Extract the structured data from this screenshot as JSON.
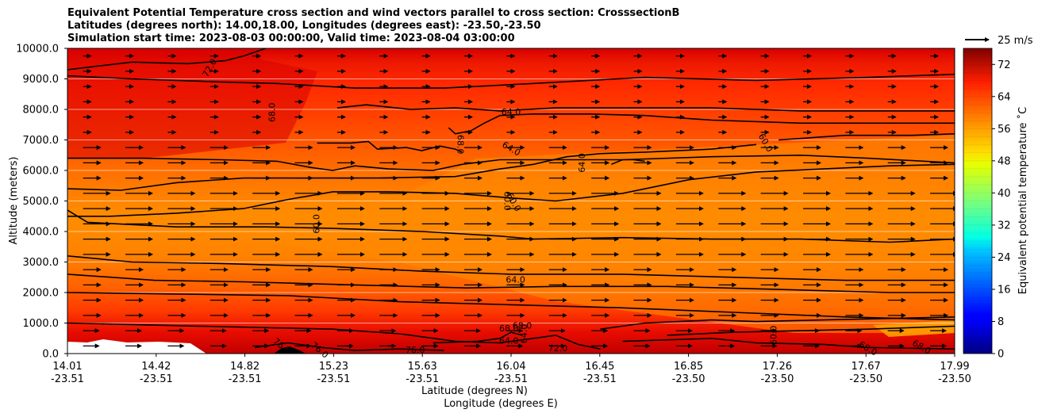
{
  "chart_data": {
    "type": "contourf",
    "title_lines": [
      "Equivalent Potential Temperature cross section and wind vectors parallel to cross section: CrosssectionB",
      "Latitudes (degrees north): 14.00,18.00, Longitudes (degrees east): -23.50,-23.50",
      "Simulation start time: 2023-08-03 00:00:00, Valid time: 2023-08-04 03:00:00"
    ],
    "xlabel_lines": [
      "Latitude (degrees N)",
      "Longitude (degrees E)"
    ],
    "ylabel": "Altitude (meters)",
    "x_ticks": [
      {
        "lat": "14.01",
        "lon": "-23.51"
      },
      {
        "lat": "14.42",
        "lon": "-23.51"
      },
      {
        "lat": "14.82",
        "lon": "-23.51"
      },
      {
        "lat": "15.23",
        "lon": "-23.51"
      },
      {
        "lat": "15.63",
        "lon": "-23.51"
      },
      {
        "lat": "16.04",
        "lon": "-23.51"
      },
      {
        "lat": "16.45",
        "lon": "-23.51"
      },
      {
        "lat": "16.85",
        "lon": "-23.50"
      },
      {
        "lat": "17.26",
        "lon": "-23.50"
      },
      {
        "lat": "17.67",
        "lon": "-23.50"
      },
      {
        "lat": "17.99",
        "lon": "-23.50"
      }
    ],
    "y_ticks": [
      "0.0",
      "1000.0",
      "2000.0",
      "3000.0",
      "4000.0",
      "5000.0",
      "6000.0",
      "7000.0",
      "8000.0",
      "9000.0",
      "10000.0"
    ],
    "ylim": [
      0,
      10000
    ],
    "colorbar": {
      "label": "Equivalent potential temperature ˚C",
      "range": [
        0,
        76
      ],
      "step": 2,
      "ticks": [
        "0",
        "8",
        "16",
        "24",
        "32",
        "40",
        "48",
        "56",
        "64",
        "72"
      ],
      "colormap": "jet"
    },
    "quiver_key": "25 m/s",
    "contour_labels": [
      {
        "text": "72.0",
        "x": 14.65,
        "y": 9350,
        "rot": -60
      },
      {
        "text": "68.0",
        "x": 14.93,
        "y": 7900,
        "rot": -90
      },
      {
        "text": "68.0",
        "x": 15.77,
        "y": 6850,
        "rot": 90
      },
      {
        "text": "64.0",
        "x": 16.0,
        "y": 7900,
        "rot": 0
      },
      {
        "text": "64.0",
        "x": 16.0,
        "y": 6700,
        "rot": 30
      },
      {
        "text": "64.0",
        "x": 16.32,
        "y": 6250,
        "rot": -90
      },
      {
        "text": "60.0",
        "x": 17.14,
        "y": 6900,
        "rot": 60
      },
      {
        "text": "60.0",
        "x": 15.98,
        "y": 5000,
        "rot": 90
      },
      {
        "text": "60.0",
        "x": 16.01,
        "y": 4950,
        "rot": 60
      },
      {
        "text": "60.0",
        "x": 15.13,
        "y": 4250,
        "rot": -90
      },
      {
        "text": "64.0",
        "x": 16.02,
        "y": 2400,
        "rot": 0
      },
      {
        "text": "68.0",
        "x": 15.99,
        "y": 800,
        "rot": 0
      },
      {
        "text": "68.0",
        "x": 16.05,
        "y": 900,
        "rot": 0
      },
      {
        "text": "64.0",
        "x": 15.99,
        "y": 400,
        "rot": 0
      },
      {
        "text": "64.0",
        "x": 16.06,
        "y": 650,
        "rot": -90
      },
      {
        "text": "76.0",
        "x": 15.57,
        "y": 100,
        "rot": 0
      },
      {
        "text": "72.0",
        "x": 16.21,
        "y": 150,
        "rot": 0
      },
      {
        "text": "76.0",
        "x": 14.97,
        "y": 230,
        "rot": 40
      },
      {
        "text": "76.0",
        "x": 15.14,
        "y": 100,
        "rot": 40
      },
      {
        "text": "60.0",
        "x": 17.18,
        "y": 600,
        "rot": -90
      },
      {
        "text": "68.0",
        "x": 17.6,
        "y": 150,
        "rot": 30
      },
      {
        "text": "68.0",
        "x": 17.84,
        "y": 200,
        "rot": 30
      }
    ],
    "contours": [
      {
        "level": 72,
        "points": [
          [
            14.01,
            9300
          ],
          [
            14.3,
            9550
          ],
          [
            14.55,
            9500
          ],
          [
            14.72,
            9600
          ],
          [
            14.8,
            9750
          ],
          [
            14.9,
            10000
          ]
        ]
      },
      {
        "level": 68,
        "points": [
          [
            14.01,
            9100
          ],
          [
            14.3,
            9000
          ],
          [
            14.7,
            8900
          ],
          [
            14.95,
            8850
          ],
          [
            15.3,
            8700
          ],
          [
            15.7,
            8700
          ],
          [
            16.1,
            8850
          ],
          [
            16.6,
            9050
          ],
          [
            17.1,
            8950
          ],
          [
            17.6,
            9050
          ],
          [
            17.99,
            9150
          ]
        ]
      },
      {
        "level": 68,
        "points": [
          [
            14.01,
            6400
          ],
          [
            14.35,
            6400
          ],
          [
            14.7,
            6350
          ],
          [
            14.95,
            6300
          ],
          [
            15.1,
            6100
          ],
          [
            15.2,
            6000
          ],
          [
            15.3,
            6150
          ],
          [
            15.45,
            6050
          ],
          [
            15.65,
            6000
          ],
          [
            15.78,
            6200
          ],
          [
            15.95,
            6350
          ],
          [
            16.2,
            6350
          ],
          [
            16.5,
            6350
          ],
          [
            16.9,
            6450
          ],
          [
            17.3,
            6500
          ],
          [
            17.6,
            6400
          ],
          [
            17.99,
            6250
          ]
        ]
      },
      {
        "level": 68,
        "points": [
          [
            15.13,
            6900
          ],
          [
            15.28,
            6900
          ],
          [
            15.36,
            6950
          ],
          [
            15.4,
            6700
          ],
          [
            15.53,
            6750
          ],
          [
            15.6,
            6650
          ],
          [
            15.68,
            6800
          ],
          [
            15.75,
            6700
          ],
          [
            15.78,
            6600
          ]
        ]
      },
      {
        "level": 68,
        "points": [
          [
            15.22,
            8050
          ],
          [
            15.35,
            8150
          ],
          [
            15.55,
            8000
          ],
          [
            15.75,
            8050
          ],
          [
            15.95,
            7950
          ],
          [
            16.2,
            8050
          ],
          [
            16.5,
            8050
          ],
          [
            16.9,
            8050
          ],
          [
            17.3,
            7950
          ],
          [
            17.99,
            7950
          ]
        ]
      },
      {
        "level": 64,
        "points": [
          [
            15.72,
            7400
          ],
          [
            15.75,
            7200
          ],
          [
            15.82,
            7300
          ],
          [
            15.88,
            7550
          ],
          [
            15.95,
            7800
          ],
          [
            16.1,
            7850
          ],
          [
            16.35,
            7850
          ],
          [
            16.6,
            7800
          ],
          [
            16.9,
            7650
          ],
          [
            17.3,
            7550
          ],
          [
            17.99,
            7550
          ]
        ]
      },
      {
        "level": 64,
        "points": [
          [
            14.01,
            5400
          ],
          [
            14.25,
            5350
          ],
          [
            14.5,
            5600
          ],
          [
            14.8,
            5750
          ],
          [
            15.1,
            5750
          ],
          [
            15.4,
            5750
          ],
          [
            15.75,
            5800
          ],
          [
            15.95,
            6050
          ],
          [
            16.1,
            6200
          ],
          [
            16.25,
            6450
          ],
          [
            16.4,
            6550
          ],
          [
            16.6,
            6600
          ],
          [
            16.9,
            6700
          ],
          [
            17.1,
            6850
          ]
        ]
      },
      {
        "level": 64,
        "points": [
          [
            16.45,
            6200
          ],
          [
            16.5,
            6350
          ],
          [
            16.55,
            6350
          ],
          [
            16.6,
            6300
          ]
        ]
      },
      {
        "level": 64,
        "points": [
          [
            17.2,
            7000
          ],
          [
            17.5,
            7150
          ],
          [
            17.8,
            7150
          ],
          [
            17.99,
            7200
          ]
        ]
      },
      {
        "level": 60,
        "points": [
          [
            14.01,
            4500
          ],
          [
            14.2,
            4500
          ],
          [
            14.5,
            4600
          ],
          [
            14.8,
            4750
          ],
          [
            15.0,
            5050
          ],
          [
            15.2,
            5300
          ],
          [
            15.45,
            5300
          ],
          [
            15.75,
            5250
          ],
          [
            16.0,
            5100
          ],
          [
            16.2,
            5000
          ],
          [
            16.5,
            5250
          ],
          [
            16.8,
            5700
          ],
          [
            17.1,
            5950
          ],
          [
            17.4,
            6050
          ],
          [
            17.7,
            6150
          ],
          [
            17.99,
            6200
          ]
        ]
      },
      {
        "level": 60,
        "points": [
          [
            14.01,
            4700
          ],
          [
            14.1,
            4300
          ],
          [
            14.5,
            4150
          ],
          [
            14.9,
            4150
          ],
          [
            15.2,
            4100
          ],
          [
            15.6,
            4000
          ],
          [
            15.95,
            3850
          ],
          [
            16.1,
            3750
          ],
          [
            16.5,
            3800
          ],
          [
            16.9,
            3750
          ],
          [
            17.3,
            3750
          ],
          [
            17.7,
            3650
          ],
          [
            17.99,
            3750
          ]
        ]
      },
      {
        "level": 60,
        "points": [
          [
            14.01,
            3200
          ],
          [
            14.3,
            3000
          ],
          [
            14.7,
            2950
          ],
          [
            15.2,
            2850
          ],
          [
            15.6,
            2700
          ],
          [
            16.0,
            2600
          ],
          [
            16.5,
            2600
          ],
          [
            17.0,
            2500
          ],
          [
            17.5,
            2400
          ],
          [
            17.99,
            2400
          ]
        ]
      },
      {
        "level": 64,
        "points": [
          [
            14.01,
            2600
          ],
          [
            14.4,
            2400
          ],
          [
            14.8,
            2350
          ],
          [
            15.3,
            2250
          ],
          [
            15.8,
            2150
          ],
          [
            16.2,
            2200
          ],
          [
            16.7,
            2200
          ],
          [
            17.2,
            2100
          ],
          [
            17.7,
            2000
          ],
          [
            17.99,
            2000
          ]
        ]
      },
      {
        "level": 68,
        "points": [
          [
            14.01,
            2000
          ],
          [
            14.5,
            1950
          ],
          [
            15.0,
            1900
          ],
          [
            15.5,
            1700
          ],
          [
            16.0,
            1600
          ],
          [
            16.5,
            1500
          ],
          [
            17.0,
            1350
          ],
          [
            17.5,
            1200
          ],
          [
            17.99,
            1100
          ]
        ]
      },
      {
        "level": 72,
        "points": [
          [
            14.01,
            1000
          ],
          [
            14.3,
            950
          ],
          [
            14.6,
            900
          ],
          [
            14.9,
            850
          ],
          [
            15.2,
            800
          ],
          [
            15.5,
            650
          ],
          [
            15.75,
            400
          ],
          [
            15.95,
            350
          ],
          [
            16.1,
            500
          ],
          [
            16.2,
            600
          ],
          [
            16.3,
            300
          ],
          [
            16.4,
            150
          ]
        ]
      },
      {
        "level": 64,
        "points": [
          [
            15.65,
            350
          ],
          [
            15.85,
            400
          ],
          [
            15.95,
            500
          ],
          [
            16.0,
            700
          ],
          [
            16.05,
            600
          ]
        ]
      },
      {
        "level": 60,
        "points": [
          [
            16.4,
            800
          ],
          [
            16.6,
            1000
          ],
          [
            16.9,
            1100
          ],
          [
            17.1,
            1050
          ],
          [
            17.4,
            1100
          ],
          [
            17.99,
            1200
          ]
        ]
      },
      {
        "level": 64,
        "points": [
          [
            16.7,
            600
          ],
          [
            17.0,
            700
          ],
          [
            17.3,
            750
          ],
          [
            17.6,
            800
          ],
          [
            17.99,
            900
          ]
        ]
      },
      {
        "level": 68,
        "points": [
          [
            16.5,
            400
          ],
          [
            16.9,
            500
          ],
          [
            17.1,
            350
          ],
          [
            17.4,
            300
          ],
          [
            17.6,
            200
          ],
          [
            17.99,
            150
          ]
        ]
      },
      {
        "level": 76,
        "points": [
          [
            14.85,
            200
          ],
          [
            15.0,
            350
          ],
          [
            15.15,
            200
          ],
          [
            15.3,
            100
          ],
          [
            15.5,
            150
          ],
          [
            15.7,
            100
          ]
        ]
      }
    ]
  }
}
